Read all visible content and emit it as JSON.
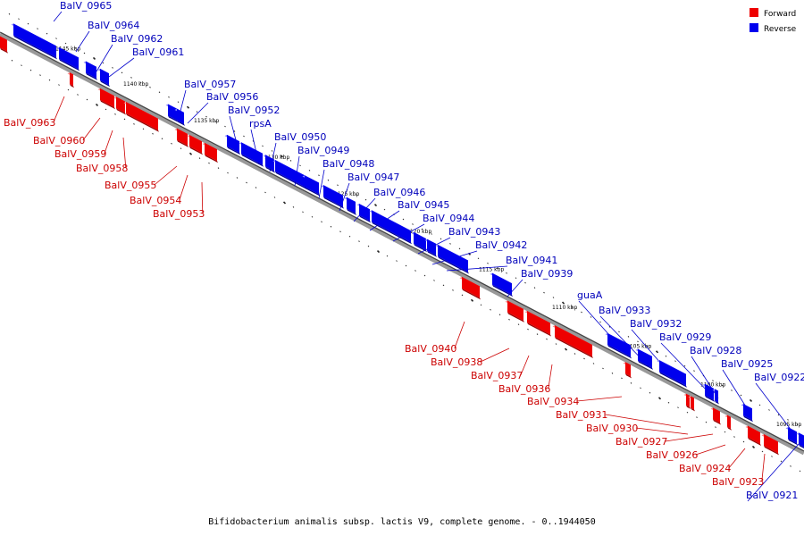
{
  "caption": "Bifidobacterium animalis subsp. lactis V9, complete genome. - 0..1944050",
  "legend": [
    {
      "label": "Forward",
      "color": "#ee0000"
    },
    {
      "label": "Reverse",
      "color": "#0000ee"
    }
  ],
  "colors": {
    "forward": "#ee0000",
    "reverse": "#0000ee",
    "forward_label": "#cc0000",
    "reverse_label": "#0000bb",
    "backbone": "#777777"
  },
  "kbp_ticks": [
    "1145 kbp",
    "1140 kbp",
    "1135 kbp",
    "1130 kbp",
    "1125 kbp",
    "1120 kbp",
    "1115 kbp",
    "1110 kbp",
    "1105 kbp",
    "1100 kbp",
    "1095 kbp"
  ],
  "reverse_labels": [
    "BalV_0965",
    "BalV_0964",
    "BalV_0962",
    "BalV_0961",
    "BalV_0957",
    "BalV_0956",
    "BalV_0952",
    "rpsA",
    "BalV_0950",
    "BalV_0949",
    "BalV_0948",
    "BalV_0947",
    "BalV_0946",
    "BalV_0945",
    "BalV_0944",
    "BalV_0943",
    "BalV_0942",
    "BalV_0941",
    "BalV_0939",
    "guaA",
    "BalV_0933",
    "BalV_0932",
    "BalV_0929",
    "BalV_0928",
    "BalV_0925",
    "BalV_0922",
    "BalV_0921"
  ],
  "forward_labels": [
    "BalV_0963",
    "BalV_0960",
    "BalV_0959",
    "BalV_0958",
    "BalV_0955",
    "BalV_0954",
    "BalV_0953",
    "BalV_0940",
    "BalV_0938",
    "BalV_0937",
    "BalV_0936",
    "BalV_0934",
    "BalV_0931",
    "BalV_0930",
    "BalV_0927",
    "BalV_0926",
    "BalV_0924",
    "BalV_0923"
  ]
}
